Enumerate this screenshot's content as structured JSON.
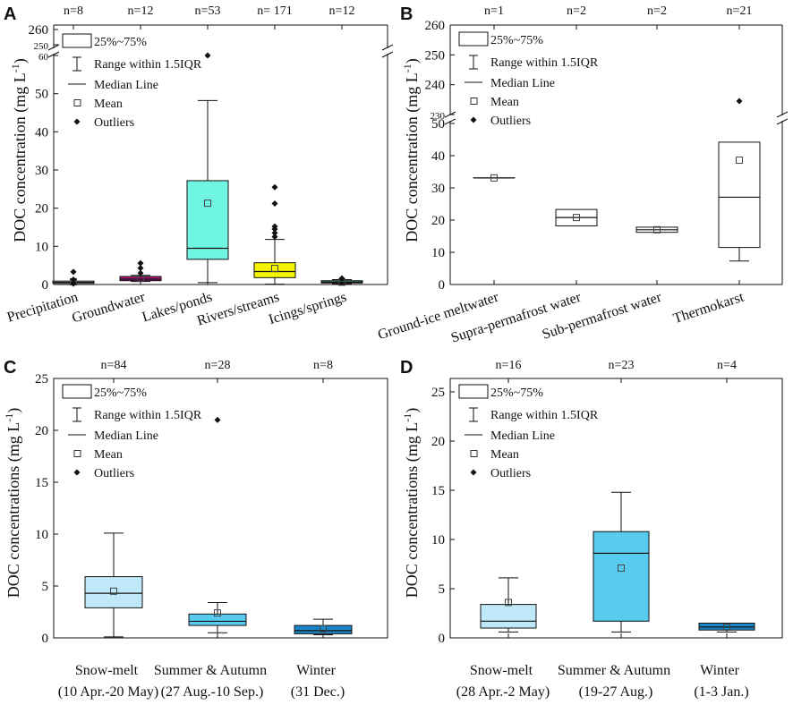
{
  "legend_items": {
    "box": "25%~75%",
    "whisker": "Range within 1.5IQR",
    "median": "Median Line",
    "mean": "Mean",
    "outliers": "Outliers"
  },
  "ylabel_A": "DOC concentration (mg L",
  "ylabel_B": "DOC concentration (mg L",
  "ylabel_C": "DOC concentrations (mg L",
  "ylabel_D": "DOC concentrations (mg L",
  "ylabel_unit_sup": "-1",
  "ylabel_close": ")",
  "chart_data": [
    {
      "panel": "A",
      "type": "box",
      "ylabel": "DOC concentration (mg L-1)",
      "broken_axis": true,
      "lower_ticks": [
        0,
        10,
        20,
        30,
        40,
        50,
        60
      ],
      "upper_ticks": [
        250,
        260
      ],
      "categories": [
        "Precipitation",
        "Groundwater",
        "Lakes/ponds",
        "Rivers/streams",
        "Icings/springs"
      ],
      "n_labels": [
        "n=8",
        "n=12",
        "n=53",
        "n= 171",
        "n=12"
      ],
      "boxes": [
        {
          "q1": 0.3,
          "median": 0.6,
          "q3": 0.9,
          "wlo": 0.3,
          "whi": 0.9,
          "mean": 0.7,
          "outliers": [
            0.2,
            1.3,
            3.3
          ],
          "color": "#ffffff"
        },
        {
          "q1": 1.0,
          "median": 1.4,
          "q3": 2.1,
          "wlo": 0.8,
          "whi": 2.4,
          "mean": 1.6,
          "outliers": [
            3.0,
            4.3,
            5.6
          ],
          "color": "#b0147d"
        },
        {
          "q1": 6.6,
          "median": 9.5,
          "q3": 27.2,
          "wlo": 0.5,
          "whi": 48.2,
          "mean": 21.3,
          "outliers": [
            60
          ],
          "color": "#6ff5e1"
        },
        {
          "q1": 1.8,
          "median": 3.4,
          "q3": 5.7,
          "wlo": 0.1,
          "whi": 11.8,
          "mean": 4.2,
          "outliers": [
            12.5,
            13.5,
            14.5,
            15.2,
            21.2,
            25.5
          ],
          "color": "#f5f500"
        },
        {
          "q1": 0.4,
          "median": 0.6,
          "q3": 1.0,
          "wlo": 0.2,
          "whi": 1.3,
          "mean": 0.6,
          "outliers": [
            1.6
          ],
          "color": "#2e8b57"
        }
      ]
    },
    {
      "panel": "B",
      "type": "box",
      "ylabel": "DOC concentration (mg L-1)",
      "broken_axis": true,
      "lower_ticks": [
        0,
        10,
        20,
        30,
        40,
        50
      ],
      "upper_ticks": [
        230,
        240,
        250,
        260
      ],
      "categories": [
        "Ground-ice meltwater",
        "Supra-permafrost water",
        "Sub-permafrost water",
        "Thermokarst"
      ],
      "n_labels": [
        "n=1",
        "n=2",
        "n=2",
        "n=21"
      ],
      "boxes": [
        {
          "q1": 33.1,
          "median": 33.1,
          "q3": 33.1,
          "wlo": 33.1,
          "whi": 33.1,
          "mean": 33.1,
          "outliers": [],
          "color": "#ffffff"
        },
        {
          "q1": 18.2,
          "median": 20.8,
          "q3": 23.3,
          "wlo": 18.2,
          "whi": 23.3,
          "mean": 20.8,
          "outliers": [],
          "color": "#ffffff"
        },
        {
          "q1": 16.2,
          "median": 17.0,
          "q3": 17.8,
          "wlo": 16.2,
          "whi": 17.8,
          "mean": 17.0,
          "outliers": [],
          "color": "#ffffff"
        },
        {
          "q1": 11.5,
          "median": 27.1,
          "q3": 44.2,
          "wlo": 7.3,
          "whi": 44.2,
          "mean": 38.6,
          "outliers": [
            234.5
          ],
          "color": "#ffffff"
        }
      ]
    },
    {
      "panel": "C",
      "type": "box",
      "ylabel": "DOC concentrations (mg L-1)",
      "ylim": [
        0,
        25
      ],
      "ticks": [
        0,
        5,
        10,
        15,
        20,
        25
      ],
      "categories": [
        "Snow-melt",
        "Summer & Autumn",
        "Winter"
      ],
      "category_sublabels": [
        "(10 Apr.-20 May)",
        "(27 Aug.-10 Sep.)",
        "(31 Dec.)"
      ],
      "n_labels": [
        "n=84",
        "n=28",
        "n=8"
      ],
      "boxes": [
        {
          "q1": 2.9,
          "median": 4.3,
          "q3": 5.9,
          "wlo": 0.1,
          "whi": 10.1,
          "mean": 4.5,
          "outliers": [],
          "color": "#bfe9f8"
        },
        {
          "q1": 1.2,
          "median": 1.6,
          "q3": 2.3,
          "wlo": 0.5,
          "whi": 3.4,
          "mean": 2.4,
          "outliers": [
            21.0
          ],
          "color": "#58ccef"
        },
        {
          "q1": 0.4,
          "median": 0.7,
          "q3": 1.2,
          "wlo": 0.3,
          "whi": 1.8,
          "mean": 0.9,
          "outliers": [],
          "color": "#1a86c6"
        }
      ]
    },
    {
      "panel": "D",
      "type": "box",
      "ylabel": "DOC concentrations (mg L-1)",
      "ylim": [
        0,
        25
      ],
      "ticks": [
        0,
        5,
        10,
        15,
        20,
        25
      ],
      "categories": [
        "Snow-melt",
        "Summer & Autumn",
        "Winter"
      ],
      "category_sublabels": [
        "(28 Apr.-2 May)",
        "(19-27 Aug.)",
        "(1-3 Jan.)"
      ],
      "n_labels": [
        "n=16",
        "n=23",
        "n=4"
      ],
      "boxes": [
        {
          "q1": 1.0,
          "median": 1.7,
          "q3": 3.4,
          "wlo": 0.6,
          "whi": 6.1,
          "mean": 3.6,
          "outliers": [],
          "color": "#bfe9f8"
        },
        {
          "q1": 1.7,
          "median": 8.6,
          "q3": 10.8,
          "wlo": 0.6,
          "whi": 14.8,
          "mean": 7.1,
          "outliers": [],
          "color": "#58ccef"
        },
        {
          "q1": 0.8,
          "median": 1.1,
          "q3": 1.5,
          "wlo": 0.6,
          "whi": 1.5,
          "mean": 1.1,
          "outliers": [],
          "color": "#1a86c6"
        }
      ]
    }
  ]
}
